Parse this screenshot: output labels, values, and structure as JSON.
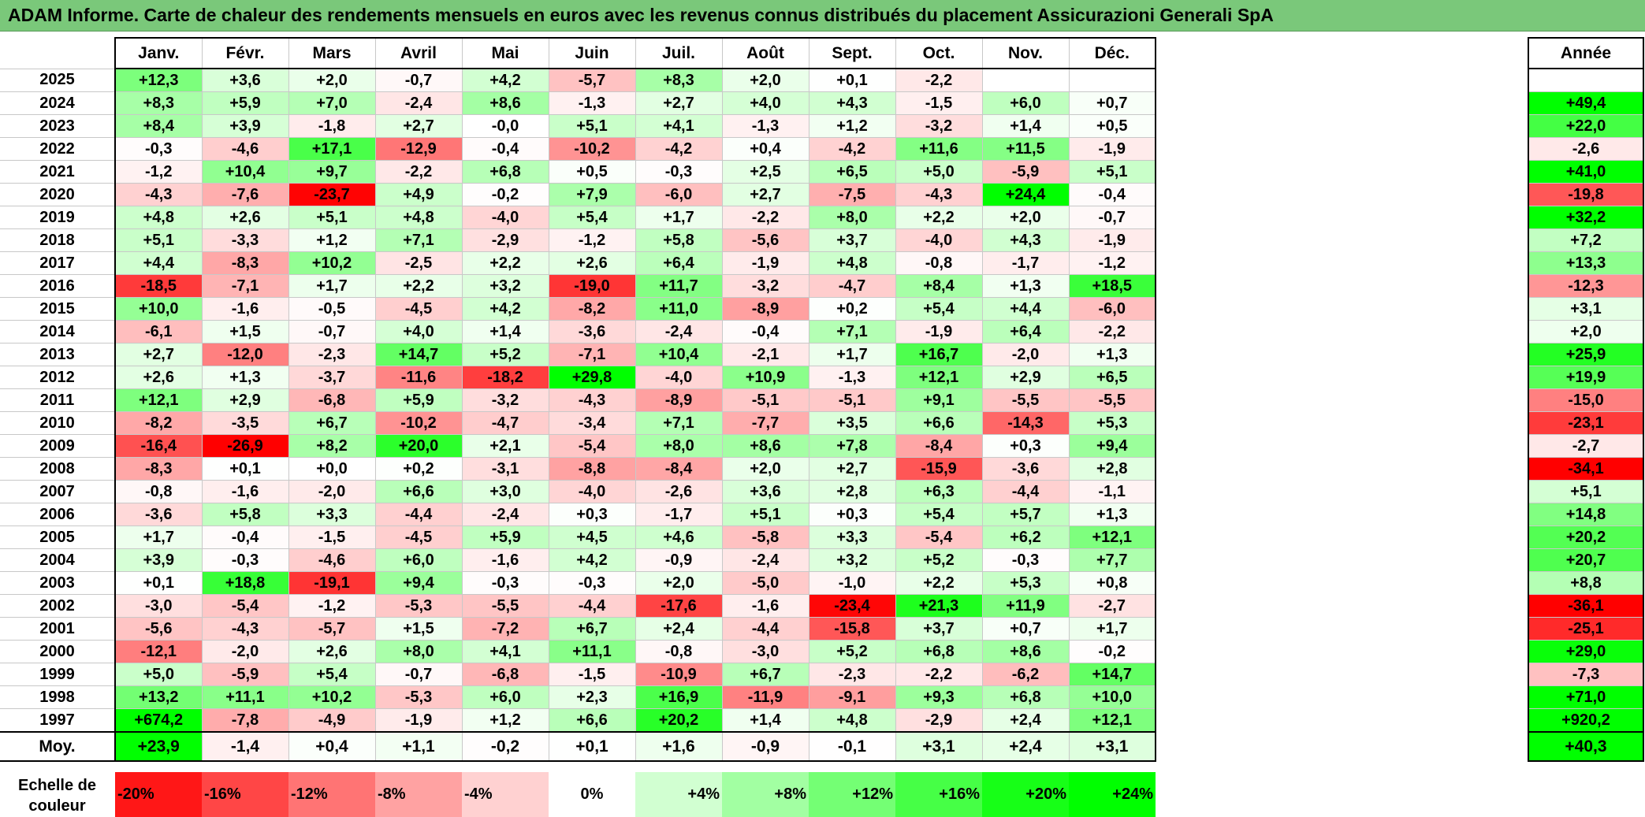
{
  "title": "ADAM Informe. Carte de chaleur des rendements mensuels en euros avec les revenus connus distribués du placement Assicurazioni Generali SpA",
  "chart_data": {
    "type": "heatmap",
    "months": [
      "Janv.",
      "Févr.",
      "Mars",
      "Avril",
      "Mai",
      "Juin",
      "Juil.",
      "Août",
      "Sept.",
      "Oct.",
      "Nov.",
      "Déc."
    ],
    "year_column_label": "Année",
    "rows": [
      {
        "year": "2025",
        "months": [
          "+12,3",
          "+3,6",
          "+2,0",
          "-0,7",
          "+4,2",
          "-5,7",
          "+8,3",
          "+2,0",
          "+0,1",
          "-2,2",
          "",
          ""
        ],
        "annual": ""
      },
      {
        "year": "2024",
        "months": [
          "+8,3",
          "+5,9",
          "+7,0",
          "-2,4",
          "+8,6",
          "-1,3",
          "+2,7",
          "+4,0",
          "+4,3",
          "-1,5",
          "+6,0",
          "+0,7"
        ],
        "annual": "+49,4"
      },
      {
        "year": "2023",
        "months": [
          "+8,4",
          "+3,9",
          "-1,8",
          "+2,7",
          "-0,0",
          "+5,1",
          "+4,1",
          "-1,3",
          "+1,2",
          "-3,2",
          "+1,4",
          "+0,5"
        ],
        "annual": "+22,0"
      },
      {
        "year": "2022",
        "months": [
          "-0,3",
          "-4,6",
          "+17,1",
          "-12,9",
          "-0,4",
          "-10,2",
          "-4,2",
          "+0,4",
          "-4,2",
          "+11,6",
          "+11,5",
          "-1,9"
        ],
        "annual": "-2,6"
      },
      {
        "year": "2021",
        "months": [
          "-1,2",
          "+10,4",
          "+9,7",
          "-2,2",
          "+6,8",
          "+0,5",
          "-0,3",
          "+2,5",
          "+6,5",
          "+5,0",
          "-5,9",
          "+5,1"
        ],
        "annual": "+41,0"
      },
      {
        "year": "2020",
        "months": [
          "-4,3",
          "-7,6",
          "-23,7",
          "+4,9",
          "-0,2",
          "+7,9",
          "-6,0",
          "+2,7",
          "-7,5",
          "-4,3",
          "+24,4",
          "-0,4"
        ],
        "annual": "-19,8"
      },
      {
        "year": "2019",
        "months": [
          "+4,8",
          "+2,6",
          "+5,1",
          "+4,8",
          "-4,0",
          "+5,4",
          "+1,7",
          "-2,2",
          "+8,0",
          "+2,2",
          "+2,0",
          "-0,7"
        ],
        "annual": "+32,2"
      },
      {
        "year": "2018",
        "months": [
          "+5,1",
          "-3,3",
          "+1,2",
          "+7,1",
          "-2,9",
          "-1,2",
          "+5,8",
          "-5,6",
          "+3,7",
          "-4,0",
          "+4,3",
          "-1,9"
        ],
        "annual": "+7,2"
      },
      {
        "year": "2017",
        "months": [
          "+4,4",
          "-8,3",
          "+10,2",
          "-2,5",
          "+2,2",
          "+2,6",
          "+6,4",
          "-1,9",
          "+4,8",
          "-0,8",
          "-1,7",
          "-1,2"
        ],
        "annual": "+13,3"
      },
      {
        "year": "2016",
        "months": [
          "-18,5",
          "-7,1",
          "+1,7",
          "+2,2",
          "+3,2",
          "-19,0",
          "+11,7",
          "-3,2",
          "-4,7",
          "+8,4",
          "+1,3",
          "+18,5"
        ],
        "annual": "-12,3"
      },
      {
        "year": "2015",
        "months": [
          "+10,0",
          "-1,6",
          "-0,5",
          "-4,5",
          "+4,2",
          "-8,2",
          "+11,0",
          "-8,9",
          "+0,2",
          "+5,4",
          "+4,4",
          "-6,0"
        ],
        "annual": "+3,1"
      },
      {
        "year": "2014",
        "months": [
          "-6,1",
          "+1,5",
          "-0,7",
          "+4,0",
          "+1,4",
          "-3,6",
          "-2,4",
          "-0,4",
          "+7,1",
          "-1,9",
          "+6,4",
          "-2,2"
        ],
        "annual": "+2,0"
      },
      {
        "year": "2013",
        "months": [
          "+2,7",
          "-12,0",
          "-2,3",
          "+14,7",
          "+5,2",
          "-7,1",
          "+10,4",
          "-2,1",
          "+1,7",
          "+16,7",
          "-2,0",
          "+1,3"
        ],
        "annual": "+25,9"
      },
      {
        "year": "2012",
        "months": [
          "+2,6",
          "+1,3",
          "-3,7",
          "-11,6",
          "-18,2",
          "+29,8",
          "-4,0",
          "+10,9",
          "-1,3",
          "+12,1",
          "+2,9",
          "+6,5"
        ],
        "annual": "+19,9"
      },
      {
        "year": "2011",
        "months": [
          "+12,1",
          "+2,9",
          "-6,8",
          "+5,9",
          "-3,2",
          "-4,3",
          "-8,9",
          "-5,1",
          "-5,1",
          "+9,1",
          "-5,5",
          "-5,5"
        ],
        "annual": "-15,0"
      },
      {
        "year": "2010",
        "months": [
          "-8,2",
          "-3,5",
          "+6,7",
          "-10,2",
          "-4,7",
          "-3,4",
          "+7,1",
          "-7,7",
          "+3,5",
          "+6,6",
          "-14,3",
          "+5,3"
        ],
        "annual": "-23,1"
      },
      {
        "year": "2009",
        "months": [
          "-16,4",
          "-26,9",
          "+8,2",
          "+20,0",
          "+2,1",
          "-5,4",
          "+8,0",
          "+8,6",
          "+7,8",
          "-8,4",
          "+0,3",
          "+9,4"
        ],
        "annual": "-2,7"
      },
      {
        "year": "2008",
        "months": [
          "-8,3",
          "+0,1",
          "+0,0",
          "+0,2",
          "-3,1",
          "-8,8",
          "-8,4",
          "+2,0",
          "+2,7",
          "-15,9",
          "-3,6",
          "+2,8"
        ],
        "annual": "-34,1"
      },
      {
        "year": "2007",
        "months": [
          "-0,8",
          "-1,6",
          "-2,0",
          "+6,6",
          "+3,0",
          "-4,0",
          "-2,6",
          "+3,6",
          "+2,8",
          "+6,3",
          "-4,4",
          "-1,1"
        ],
        "annual": "+5,1"
      },
      {
        "year": "2006",
        "months": [
          "-3,6",
          "+5,8",
          "+3,3",
          "-4,4",
          "-2,4",
          "+0,3",
          "-1,7",
          "+5,1",
          "+0,3",
          "+5,4",
          "+5,7",
          "+1,3"
        ],
        "annual": "+14,8"
      },
      {
        "year": "2005",
        "months": [
          "+1,7",
          "-0,4",
          "-1,5",
          "-4,5",
          "+5,9",
          "+4,5",
          "+4,6",
          "-5,8",
          "+3,3",
          "-5,4",
          "+6,2",
          "+12,1"
        ],
        "annual": "+20,2"
      },
      {
        "year": "2004",
        "months": [
          "+3,9",
          "-0,3",
          "-4,6",
          "+6,0",
          "-1,6",
          "+4,2",
          "-0,9",
          "-2,4",
          "+3,2",
          "+5,2",
          "-0,3",
          "+7,7"
        ],
        "annual": "+20,7"
      },
      {
        "year": "2003",
        "months": [
          "+0,1",
          "+18,8",
          "-19,1",
          "+9,4",
          "-0,3",
          "-0,3",
          "+2,0",
          "-5,0",
          "-1,0",
          "+2,2",
          "+5,3",
          "+0,8"
        ],
        "annual": "+8,8"
      },
      {
        "year": "2002",
        "months": [
          "-3,0",
          "-5,4",
          "-1,2",
          "-5,3",
          "-5,5",
          "-4,4",
          "-17,6",
          "-1,6",
          "-23,4",
          "+21,3",
          "+11,9",
          "-2,7"
        ],
        "annual": "-36,1"
      },
      {
        "year": "2001",
        "months": [
          "-5,6",
          "-4,3",
          "-5,7",
          "+1,5",
          "-7,2",
          "+6,7",
          "+2,4",
          "-4,4",
          "-15,8",
          "+3,7",
          "+0,7",
          "+1,7"
        ],
        "annual": "-25,1"
      },
      {
        "year": "2000",
        "months": [
          "-12,1",
          "-2,0",
          "+2,6",
          "+8,0",
          "+4,1",
          "+11,1",
          "-0,8",
          "-3,0",
          "+5,2",
          "+6,8",
          "+8,6",
          "-0,2"
        ],
        "annual": "+29,0"
      },
      {
        "year": "1999",
        "months": [
          "+5,0",
          "-5,9",
          "+5,4",
          "-0,7",
          "-6,8",
          "-1,5",
          "-10,9",
          "+6,7",
          "-2,3",
          "-2,2",
          "-6,2",
          "+14,7"
        ],
        "annual": "-7,3"
      },
      {
        "year": "1998",
        "months": [
          "+13,2",
          "+11,1",
          "+10,2",
          "-5,3",
          "+6,0",
          "+2,3",
          "+16,9",
          "-11,9",
          "-9,1",
          "+9,3",
          "+6,8",
          "+10,0"
        ],
        "annual": "+71,0"
      },
      {
        "year": "1997",
        "months": [
          "+674,2",
          "-7,8",
          "-4,9",
          "-1,9",
          "+1,2",
          "+6,6",
          "+20,2",
          "+1,4",
          "+4,8",
          "-2,9",
          "+2,4",
          "+12,1"
        ],
        "annual": "+920,2"
      }
    ],
    "average": {
      "label": "Moy.",
      "months": [
        "+23,9",
        "-1,4",
        "+0,4",
        "+1,1",
        "-0,2",
        "+0,1",
        "+1,6",
        "-0,9",
        "-0,1",
        "+3,1",
        "+2,4",
        "+3,1"
      ],
      "annual": "+40,3"
    },
    "color_scale": {
      "label_line1": "Echelle de",
      "label_line2": "couleur",
      "steps": [
        "-20%",
        "-16%",
        "-12%",
        "-8%",
        "-4%",
        "0%",
        "+4%",
        "+8%",
        "+12%",
        "+16%",
        "+20%",
        "+24%"
      ],
      "step_values": [
        -20,
        -16,
        -12,
        -8,
        -4,
        0,
        4,
        8,
        12,
        16,
        20,
        24
      ],
      "negative_color": "#ff0000",
      "positive_color": "#00ff00",
      "neutral_color": "#ffffff"
    }
  }
}
